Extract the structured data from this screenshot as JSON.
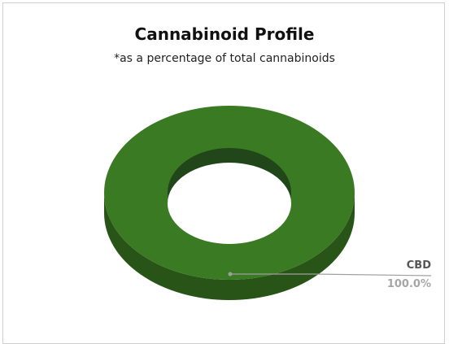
{
  "chart_data": {
    "type": "pie",
    "style": "3d-donut",
    "title": "Cannabinoid Profile",
    "subtitle": "*as a percentage of total cannabinoids",
    "slices": [
      {
        "label": "CBD",
        "value": 100.0,
        "value_label": "100.0%",
        "color": "#3a7a22"
      }
    ],
    "colors": {
      "top": "#3a7a22",
      "side": "#285417",
      "inner_wall": "#21461a",
      "leader": "#9e9e9e"
    },
    "legend": "none"
  }
}
